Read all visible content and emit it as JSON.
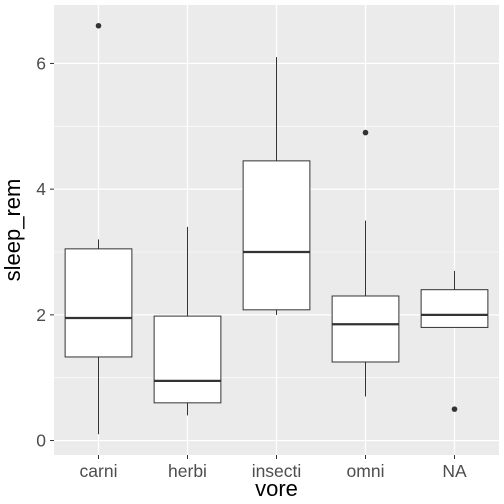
{
  "chart_data": {
    "type": "boxplot",
    "xlabel": "vore",
    "ylabel": "sleep_rem",
    "categories": [
      "carni",
      "herbi",
      "insecti",
      "omni",
      "NA"
    ],
    "boxes": [
      {
        "category": "carni",
        "whisker_low": 0.1,
        "q1": 1.33,
        "median": 1.95,
        "q3": 3.05,
        "whisker_high": 3.2,
        "outliers": [
          6.6
        ]
      },
      {
        "category": "herbi",
        "whisker_low": 0.4,
        "q1": 0.6,
        "median": 0.95,
        "q3": 1.98,
        "whisker_high": 3.4,
        "outliers": []
      },
      {
        "category": "insecti",
        "whisker_low": 2.0,
        "q1": 2.08,
        "median": 3.0,
        "q3": 4.45,
        "whisker_high": 6.1,
        "outliers": []
      },
      {
        "category": "omni",
        "whisker_low": 0.7,
        "q1": 1.25,
        "median": 1.85,
        "q3": 2.3,
        "whisker_high": 3.5,
        "outliers": [
          4.9
        ]
      },
      {
        "category": "NA",
        "whisker_low": 1.8,
        "q1": 1.8,
        "median": 2.0,
        "q3": 2.4,
        "whisker_high": 2.7,
        "outliers": [
          0.5
        ]
      }
    ],
    "y_ticks": [
      0,
      2,
      4,
      6
    ],
    "y_minor_ticks": [
      1,
      3,
      5
    ],
    "ylim": [
      -0.23,
      6.93
    ],
    "grid": true,
    "colors": {
      "panel_background": "#ebebeb",
      "grid": "#ffffff",
      "box_fill": "#ffffff",
      "box_stroke": "#333333",
      "tick_text": "#4d4d4d",
      "axis_title": "#000000"
    }
  }
}
